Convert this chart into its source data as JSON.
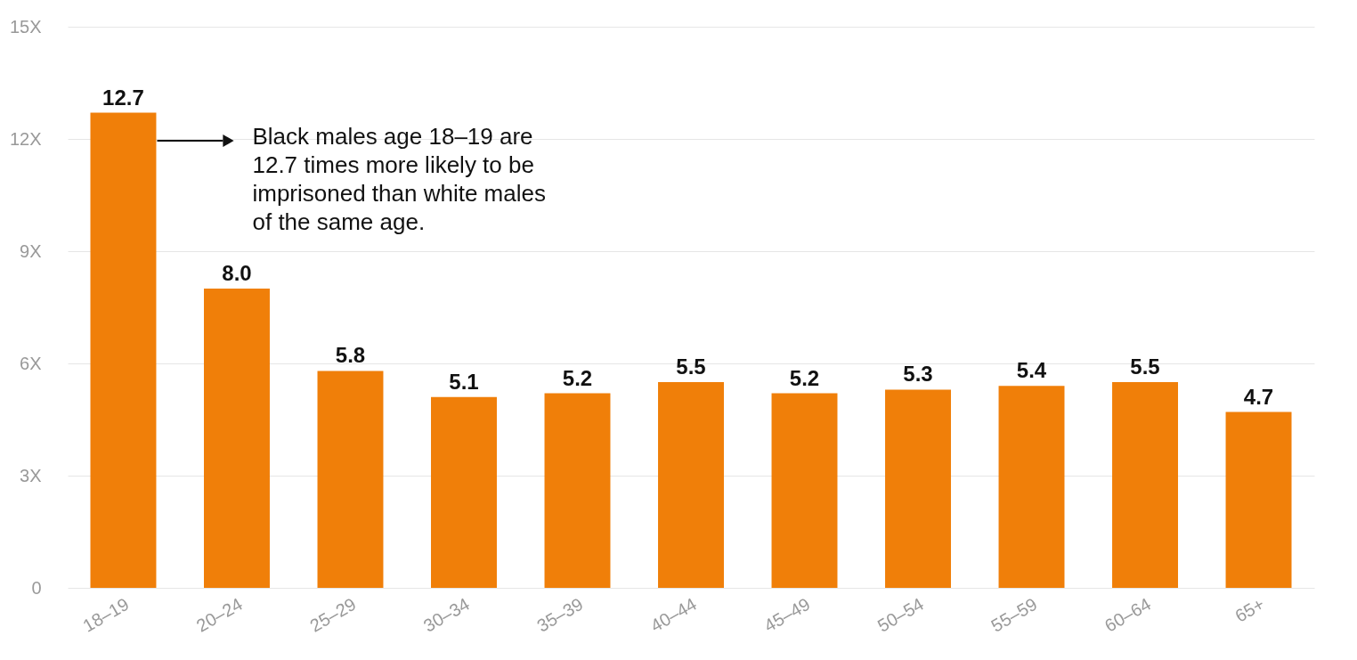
{
  "chart_data": {
    "type": "bar",
    "categories": [
      "18–19",
      "20–24",
      "25–29",
      "30–34",
      "35–39",
      "40–44",
      "45–49",
      "50–54",
      "55–59",
      "60–64",
      "65+"
    ],
    "values": [
      12.7,
      8.0,
      5.8,
      5.1,
      5.2,
      5.5,
      5.2,
      5.3,
      5.4,
      5.5,
      4.7
    ],
    "color": "#f07f09",
    "ylim": [
      0,
      15
    ],
    "yticks": [
      0,
      {
        "value": 3,
        "label": "3X"
      },
      {
        "value": 6,
        "label": "6X"
      },
      {
        "value": 9,
        "label": "9X"
      },
      {
        "value": 12,
        "label": "12X"
      },
      {
        "value": 15,
        "label": "15X"
      }
    ],
    "value_labels": [
      "12.7",
      "8.0",
      "5.8",
      "5.1",
      "5.2",
      "5.5",
      "5.2",
      "5.3",
      "5.4",
      "5.5",
      "4.7"
    ],
    "grid": "y",
    "annotations": [
      "Black males age 18–19 are 12.7 times more likely to be imprisoned than white males of the same age."
    ]
  }
}
